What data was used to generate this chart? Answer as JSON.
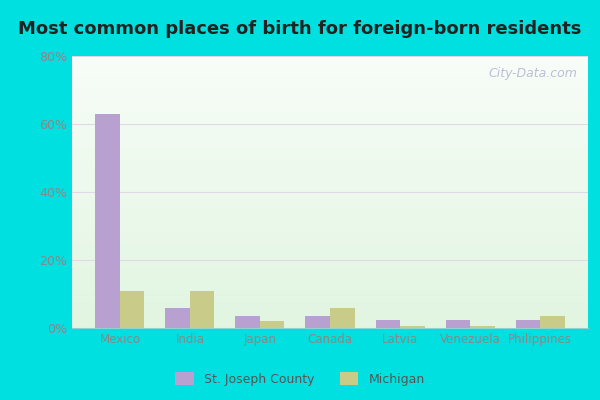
{
  "title": "Most common places of birth for foreign-born residents",
  "categories": [
    "Mexico",
    "India",
    "Japan",
    "Canada",
    "Latvia",
    "Venezuela",
    "Philippines"
  ],
  "county_values": [
    63,
    6,
    3.5,
    3.5,
    2.5,
    2.5,
    2.5
  ],
  "state_values": [
    11,
    11,
    2,
    6,
    0.5,
    0.5,
    3.5
  ],
  "county_color": "#b8a0d0",
  "state_color": "#c8cc88",
  "ylim": [
    0,
    80
  ],
  "yticks": [
    0,
    20,
    40,
    60,
    80
  ],
  "ytick_labels": [
    "0%",
    "20%",
    "40%",
    "60%",
    "80%"
  ],
  "background_color": "#00e0e0",
  "county_label": "St. Joseph County",
  "state_label": "Michigan",
  "watermark": "City-Data.com",
  "bar_width": 0.35,
  "title_fontsize": 13,
  "grid_color": "#e0d8e8",
  "tick_color": "#888888",
  "title_color": "#222222"
}
